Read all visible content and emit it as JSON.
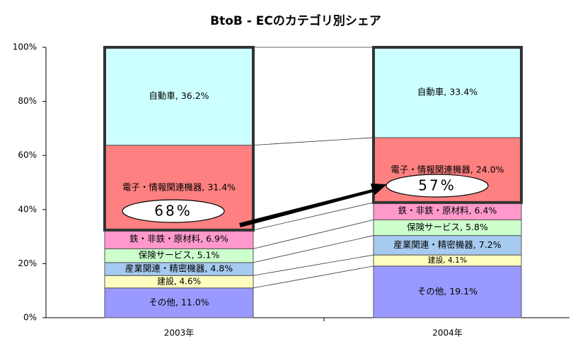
{
  "chart_data": {
    "type": "bar",
    "stacked": true,
    "title": "BtoB - ECのカテゴリ別シェア",
    "categories": [
      "2003年",
      "2004年"
    ],
    "series": [
      {
        "color": "#9999ff",
        "values": [
          11.0,
          19.1
        ],
        "value_labels": [
          "その他, 11.0%",
          "その他, 19.1%"
        ]
      },
      {
        "color": "#ffffc0",
        "values": [
          4.6,
          4.1
        ],
        "value_labels": [
          "建設, 4.6%",
          "建設, 4.1%"
        ]
      },
      {
        "color": "#a6caf0",
        "values": [
          4.8,
          7.2
        ],
        "value_labels": [
          "産業関連・精密機器, 4.8%",
          "産業関連・精密機器, 7.2%"
        ]
      },
      {
        "color": "#ccffcc",
        "values": [
          5.1,
          5.8
        ],
        "value_labels": [
          "保険サービス, 5.1%",
          "保険サービス, 5.8%"
        ]
      },
      {
        "color": "#ff99cc",
        "values": [
          6.9,
          6.4
        ],
        "value_labels": [
          "鉄・非鉄・原材料, 6.9%",
          "鉄・非鉄・原材料, 6.4%"
        ]
      },
      {
        "color": "#ff8080",
        "values": [
          31.4,
          24.0
        ],
        "value_labels": [
          "電子・情報関連機器, 31.4%",
          "電子・情報関連機器, 24.0%"
        ]
      },
      {
        "color": "#ccffff",
        "values": [
          36.2,
          33.4
        ],
        "value_labels": [
          "自動車, 36.2%",
          "自動車, 33.4%"
        ]
      }
    ],
    "ylim": [
      0,
      100
    ],
    "yticks": [
      {
        "value": 0,
        "label": "0%"
      },
      {
        "value": 20,
        "label": "20%"
      },
      {
        "value": 40,
        "label": "40%"
      },
      {
        "value": 60,
        "label": "60%"
      },
      {
        "value": 80,
        "label": "80%"
      },
      {
        "value": 100,
        "label": "100%"
      }
    ],
    "annotations": [
      "68%",
      "57%"
    ]
  }
}
